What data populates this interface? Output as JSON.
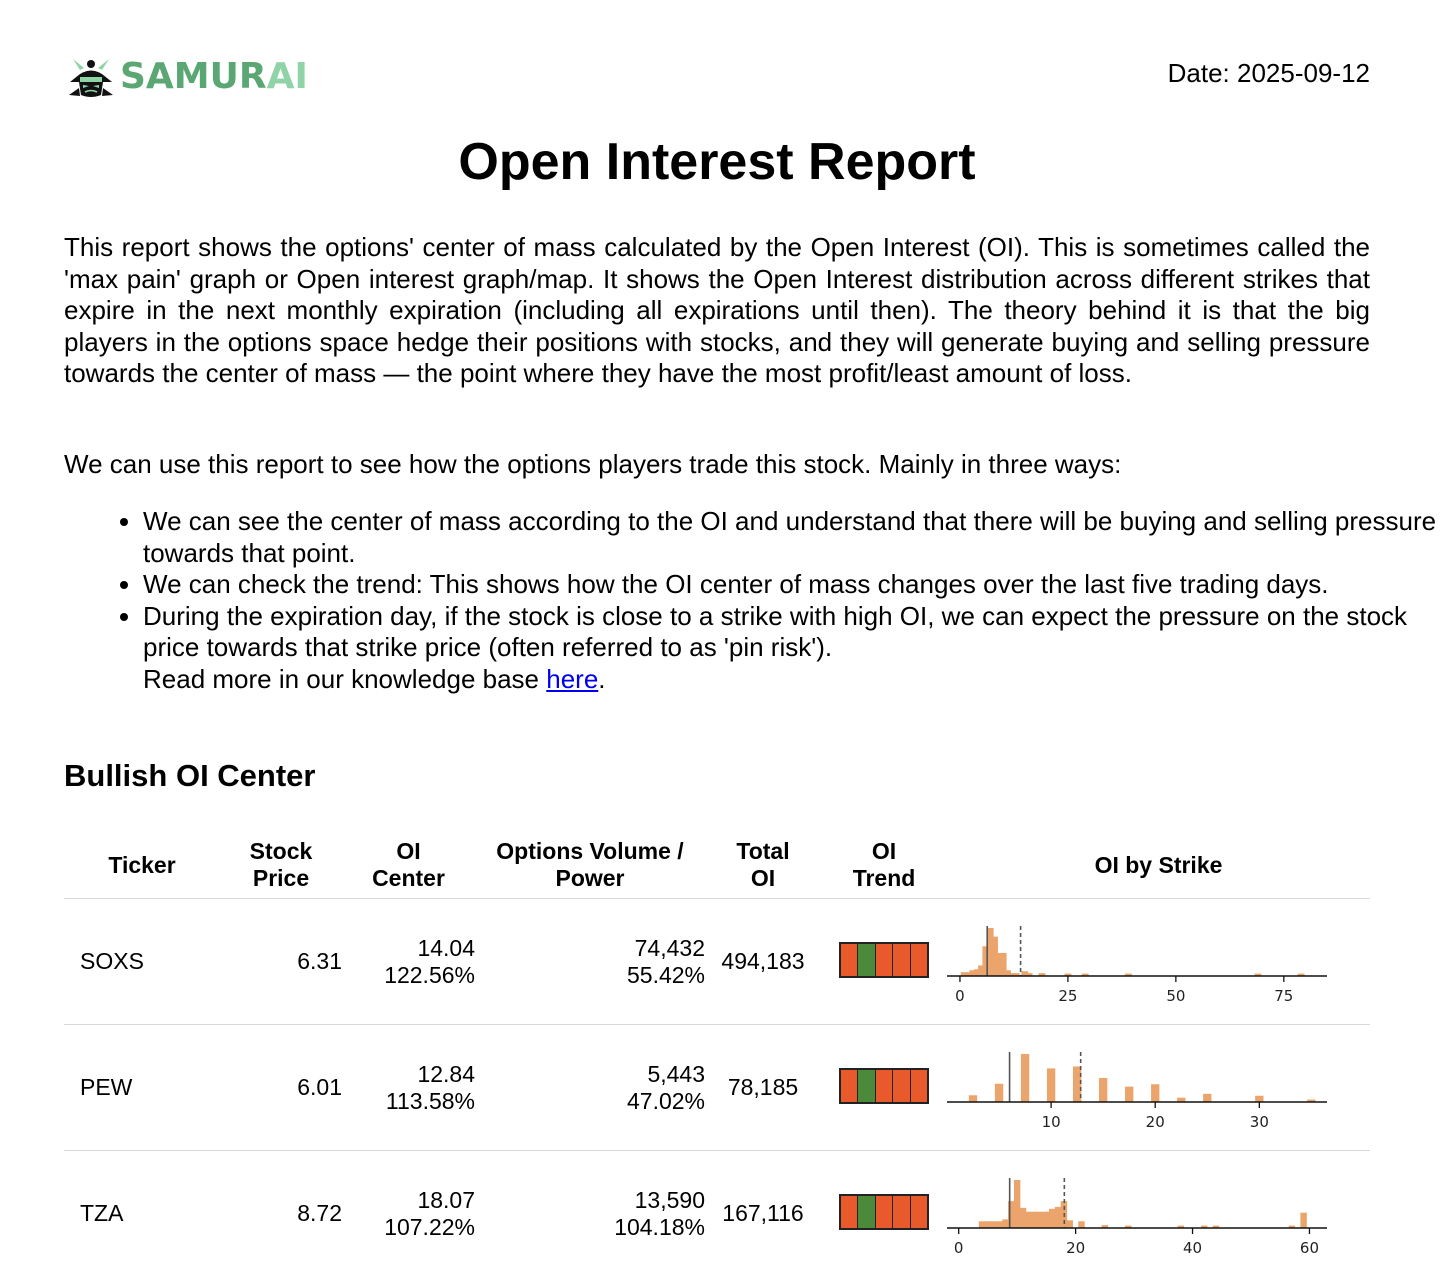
{
  "brand": {
    "name_main": "SAMUR",
    "name_accent": "AI",
    "logo_icon": "samurai-helmet-icon",
    "main_color": "#5aa774",
    "accent_color": "#8fd3a6"
  },
  "date_text": "Date: 2025-09-12",
  "title": "Open Interest Report",
  "intro": "This report shows the options' center of mass calculated by the Open Interest (OI). This is sometimes called the 'max pain' graph or Open interest graph/map. It shows the Open Interest distribution across different strikes that expire in the next monthly expiration (including all expirations until then). The theory behind it is that the big players in the options space hedge their positions with stocks, and they will generate buying and selling pressure towards the center of mass — the point where they have the most profit/least amount of loss.",
  "lead": "We can use this report to see how the options players trade this stock. Mainly in three ways:",
  "points": [
    "We can see the center of mass according to the OI and understand that there will be buying and selling pressure towards that point.",
    "We can check the trend: This shows how the OI center of mass changes over the last five trading days.",
    "During the expiration day, if the stock is close to a strike with high OI, we can expect the pressure on the stock price towards that strike price (often referred to as 'pin risk')."
  ],
  "read_more_prefix": "Read more in our knowledge base ",
  "read_more_link": "here",
  "read_more_suffix": ".",
  "section_title": "Bullish OI Center",
  "columns": {
    "ticker": "Ticker",
    "price_1": "Stock",
    "price_2": "Price",
    "center_1": "OI",
    "center_2": "Center",
    "volume_1": "Options Volume /",
    "volume_2": "Power",
    "total_1": "Total",
    "total_2": "OI",
    "trend_1": "OI",
    "trend_2": "Trend",
    "strike": "OI by Strike"
  },
  "trend_colors": {
    "up": "#4a8a3a",
    "down": "#e85a2c"
  },
  "hist_color": "#eba56c",
  "rows": [
    {
      "ticker": "SOXS",
      "price": "6.31",
      "oi_center": "14.04",
      "oi_center_pct": "122.56%",
      "volume": "74,432",
      "power": "55.42%",
      "total_oi": "494,183",
      "trend": [
        "down",
        "up",
        "down",
        "down",
        "down"
      ],
      "chart": {
        "xlim": [
          -3,
          85
        ],
        "ticks": [
          0,
          25,
          50,
          75
        ],
        "tick_labels": [
          "0",
          "25",
          "50",
          "75"
        ],
        "price": 6.31,
        "center": 14.04,
        "bin_width": 1.6,
        "bars": [
          [
            1,
            0.08
          ],
          [
            2,
            0.08
          ],
          [
            3,
            0.12
          ],
          [
            4,
            0.14
          ],
          [
            5,
            0.22
          ],
          [
            6,
            0.62
          ],
          [
            7,
            1.0
          ],
          [
            8,
            0.82
          ],
          [
            9,
            0.48
          ],
          [
            10,
            0.48
          ],
          [
            11,
            0.12
          ],
          [
            12,
            0.06
          ],
          [
            13,
            0.06
          ],
          [
            15,
            0.1
          ],
          [
            16,
            0.06
          ],
          [
            19,
            0.06
          ],
          [
            25,
            0.05
          ],
          [
            29,
            0.05
          ],
          [
            39,
            0.05
          ],
          [
            69,
            0.05
          ],
          [
            79,
            0.05
          ]
        ]
      }
    },
    {
      "ticker": "PEW",
      "price": "6.01",
      "oi_center": "12.84",
      "oi_center_pct": "113.58%",
      "volume": "5,443",
      "power": "47.02%",
      "total_oi": "78,185",
      "trend": [
        "down",
        "up",
        "down",
        "down",
        "down"
      ],
      "chart": {
        "xlim": [
          0,
          36.5
        ],
        "ticks": [
          10,
          20,
          30
        ],
        "tick_labels": [
          "10",
          "20",
          "30"
        ],
        "price": 6.01,
        "center": 12.84,
        "bin_width": 0.8,
        "bars": [
          [
            2.5,
            0.14
          ],
          [
            5,
            0.38
          ],
          [
            7.5,
            1.0
          ],
          [
            10,
            0.7
          ],
          [
            12.5,
            0.74
          ],
          [
            15,
            0.5
          ],
          [
            17.5,
            0.32
          ],
          [
            20,
            0.37
          ],
          [
            22.5,
            0.09
          ],
          [
            25,
            0.17
          ],
          [
            30,
            0.13
          ],
          [
            35,
            0.05
          ]
        ]
      }
    },
    {
      "ticker": "TZA",
      "price": "8.72",
      "oi_center": "18.07",
      "oi_center_pct": "107.22%",
      "volume": "13,590",
      "power": "104.18%",
      "total_oi": "167,116",
      "trend": [
        "down",
        "up",
        "down",
        "down",
        "down"
      ],
      "chart": {
        "xlim": [
          -2,
          63
        ],
        "ticks": [
          0,
          20,
          40,
          60
        ],
        "tick_labels": [
          "0",
          "20",
          "40",
          "60"
        ],
        "price": 8.72,
        "center": 18.07,
        "bin_width": 1.1,
        "bars": [
          [
            4,
            0.14
          ],
          [
            5,
            0.14
          ],
          [
            6,
            0.14
          ],
          [
            7,
            0.14
          ],
          [
            8,
            0.18
          ],
          [
            9,
            0.56
          ],
          [
            10,
            1.0
          ],
          [
            11,
            0.42
          ],
          [
            12,
            0.34
          ],
          [
            13,
            0.34
          ],
          [
            14,
            0.34
          ],
          [
            15,
            0.34
          ],
          [
            16,
            0.4
          ],
          [
            17,
            0.44
          ],
          [
            18,
            0.56
          ],
          [
            19,
            0.16
          ],
          [
            21,
            0.14
          ],
          [
            25,
            0.06
          ],
          [
            29,
            0.05
          ],
          [
            38,
            0.05
          ],
          [
            42,
            0.05
          ],
          [
            44,
            0.05
          ],
          [
            57,
            0.05
          ],
          [
            59,
            0.32
          ]
        ]
      }
    }
  ]
}
